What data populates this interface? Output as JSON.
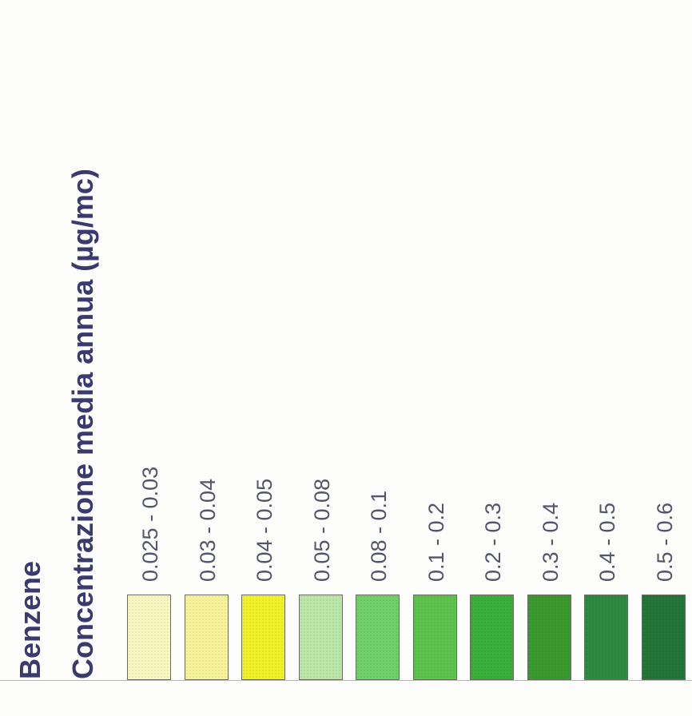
{
  "chart_data": {
    "type": "legend",
    "title": "Benzene",
    "subtitle": "Concentrazione media annua (µg/mc)",
    "classes": [
      {
        "label": "0.025 - 0.03",
        "color": "#f8f6c0"
      },
      {
        "label": "0.03 - 0.04",
        "color": "#f5f29a"
      },
      {
        "label": "0.04 - 0.05",
        "color": "#f1f12a"
      },
      {
        "label": "0.05 - 0.08",
        "color": "#b9e6a6"
      },
      {
        "label": "0.08 - 0.1",
        "color": "#6fd06a"
      },
      {
        "label": "0.1 - 0.2",
        "color": "#5ec34e"
      },
      {
        "label": "0.2 - 0.3",
        "color": "#3aae3a"
      },
      {
        "label": "0.3 - 0.4",
        "color": "#3b9a2f"
      },
      {
        "label": "0.4 - 0.5",
        "color": "#2d8a40"
      },
      {
        "label": "0.5 - 0.6",
        "color": "#237538"
      }
    ]
  }
}
